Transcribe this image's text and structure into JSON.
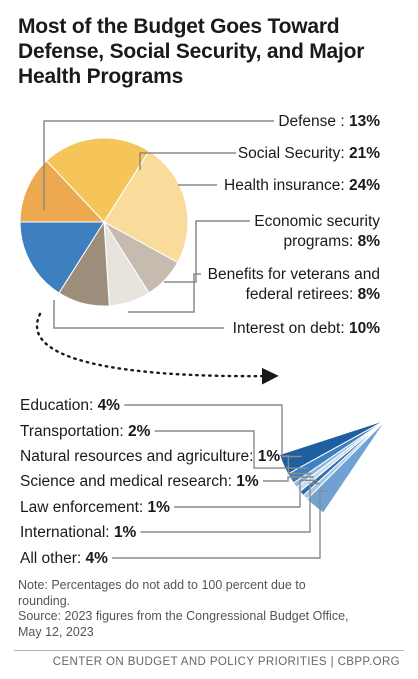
{
  "chart_data": {
    "type": "pie",
    "title": "Most of the Budget Goes Toward Defense, Social Security, and Major Health Programs",
    "slices": [
      {
        "label": "Defense",
        "value": 13,
        "display": "13%",
        "color": "#eda94f"
      },
      {
        "label": "Social Security",
        "value": 21,
        "display": "21%",
        "color": "#f6c55a"
      },
      {
        "label": "Health insurance",
        "value": 24,
        "display": "24%",
        "color": "#f9dc9c"
      },
      {
        "label": "Economic security programs",
        "value": 8,
        "display": "8%",
        "color": "#c5bbaf"
      },
      {
        "label": "Benefits for veterans and federal retirees",
        "value": 8,
        "display": "8%",
        "color": "#e7e3dd"
      },
      {
        "label": "Interest on debt",
        "value": 10,
        "display": "10%",
        "color": "#9c8e7a"
      },
      {
        "label": "Other",
        "value": 16,
        "display": "",
        "color": "#3e7fbf"
      }
    ],
    "breakout": [
      {
        "label": "Education",
        "value": 4,
        "display": "4%",
        "color": "#1d5f9f"
      },
      {
        "label": "Transportation",
        "value": 2,
        "display": "2%",
        "color": "#3f80c0"
      },
      {
        "label": "Natural resources and agriculture",
        "value": 1,
        "display": "1%",
        "color": "#8fb7dc"
      },
      {
        "label": "Science and medical research",
        "value": 1,
        "display": "1%",
        "color": "#c9dbee"
      },
      {
        "label": "Law enforcement",
        "value": 1,
        "display": "1%",
        "color": "#2f6faf"
      },
      {
        "label": "International",
        "value": 1,
        "display": "1%",
        "color": "#a6c6e4"
      },
      {
        "label": "All other",
        "value": 4,
        "display": "4%",
        "color": "#6fa2d2"
      }
    ]
  },
  "notes": [
    "Note: Percentages do not add to 100 percent due to",
    "rounding.",
    "Source: 2023 figures from the Congressional Budget Office,",
    "May 12, 2023"
  ],
  "footer": "CENTER ON BUDGET AND POLICY PRIORITIES | CBPP.ORG"
}
